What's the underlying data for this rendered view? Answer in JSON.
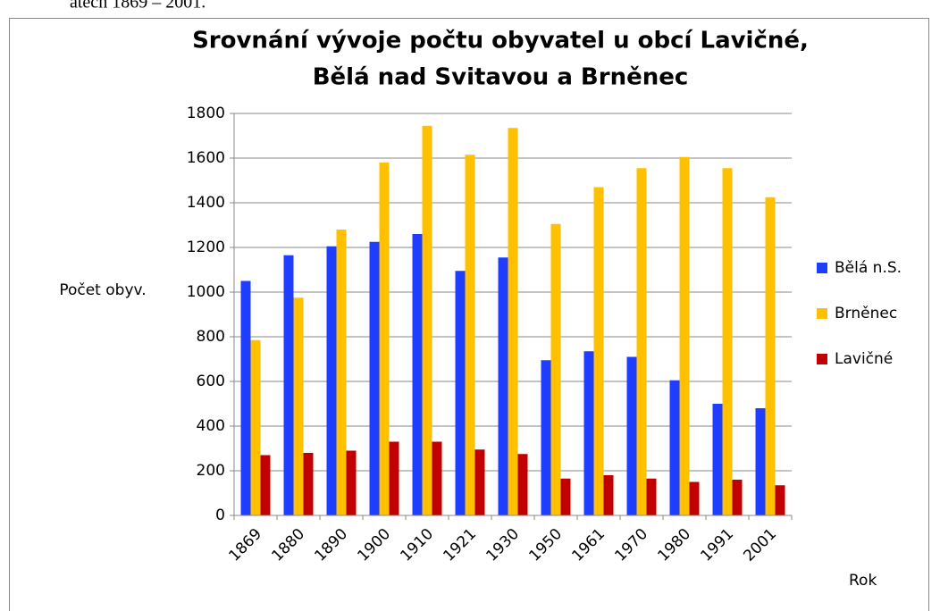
{
  "caption": "atech 1869 – 2001.",
  "chart_data": {
    "type": "bar",
    "title": [
      "Srovnání vývoje počtu obyvatel u obcí Lavičné,",
      "Bělá nad Svitavou a Brněnec"
    ],
    "y_label": "Počet obyv.",
    "x_label": "Rok",
    "categories": [
      "1869",
      "1880",
      "1890",
      "1900",
      "1910",
      "1921",
      "1930",
      "1950",
      "1961",
      "1970",
      "1980",
      "1991",
      "2001"
    ],
    "series": [
      {
        "name": "Bělá n.S.",
        "color": "#1f3dff",
        "values": [
          1050,
          1165,
          1205,
          1225,
          1260,
          1095,
          1155,
          695,
          735,
          710,
          605,
          500,
          480
        ]
      },
      {
        "name": "Brněnec",
        "color": "#ffc000",
        "values": [
          785,
          975,
          1280,
          1580,
          1745,
          1615,
          1735,
          1305,
          1470,
          1555,
          1605,
          1555,
          1425
        ]
      },
      {
        "name": "Lavičné",
        "color": "#c00000",
        "values": [
          270,
          280,
          290,
          330,
          330,
          295,
          275,
          165,
          180,
          165,
          150,
          160,
          135
        ]
      }
    ],
    "ylim": [
      0,
      1800
    ],
    "yticks": [
      0,
      200,
      400,
      600,
      800,
      1000,
      1200,
      1400,
      1600,
      1800
    ],
    "grid": true,
    "legend": "right"
  }
}
